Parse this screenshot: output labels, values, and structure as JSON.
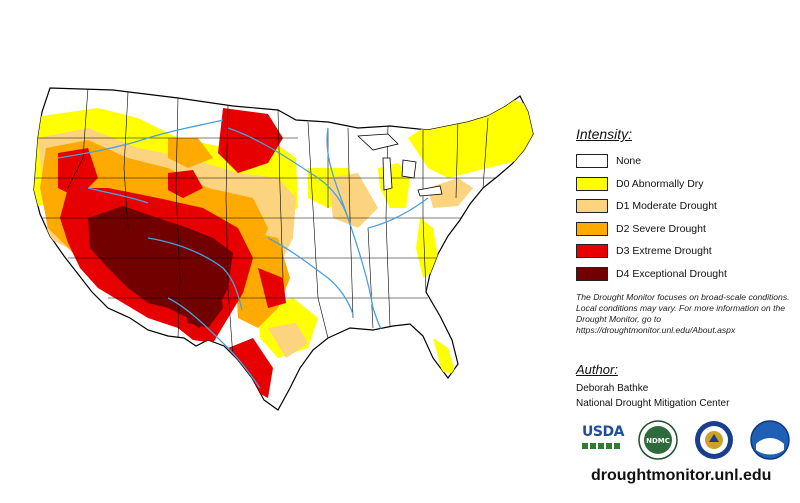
{
  "legend": {
    "title": "Intensity:",
    "items": [
      {
        "label": "None",
        "color": "#ffffff"
      },
      {
        "label": "D0 Abnormally Dry",
        "color": "#ffff00"
      },
      {
        "label": "D1 Moderate Drought",
        "color": "#fcd37f"
      },
      {
        "label": "D2 Severe Drought",
        "color": "#ffaa00"
      },
      {
        "label": "D3 Extreme Drought",
        "color": "#e60000"
      },
      {
        "label": "D4 Exceptional Drought",
        "color": "#730000"
      }
    ]
  },
  "note": "The Drought Monitor focuses on broad-scale conditions. Local conditions may vary. For more information on the Drought Monitor, go to https://droughtmonitor.unl.edu/About.aspx",
  "author": {
    "title": "Author:",
    "name": "Deborah Bathke",
    "org": "National Drought Mitigation Center"
  },
  "logos": {
    "usda": "USDA",
    "ndmc": "NDMC"
  },
  "website": "droughtmonitor.unl.edu",
  "colors": {
    "river": "#4a9fe0",
    "border": "#000000"
  }
}
